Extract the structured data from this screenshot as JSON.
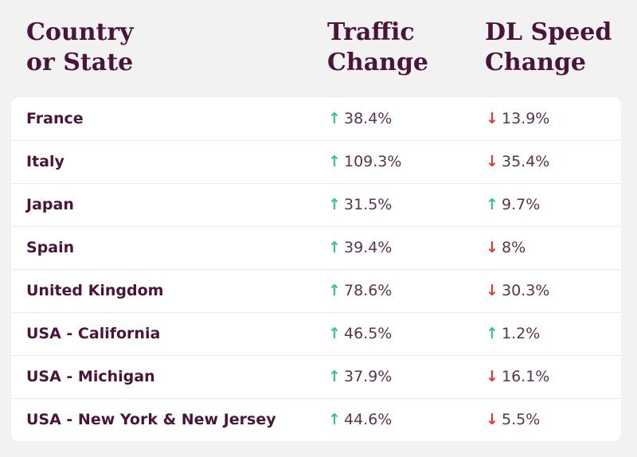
{
  "headers": {
    "country": "Country\nor State",
    "traffic": "Traffic\nChange",
    "speed": "DL Speed\nChange"
  },
  "colors": {
    "title": "#4a1538",
    "up": "#3dbf97",
    "down": "#e0393e"
  },
  "rows": [
    {
      "country": "France",
      "traffic": "38.4%",
      "traffic_dir": "up",
      "speed": "13.9%",
      "speed_dir": "down"
    },
    {
      "country": "Italy",
      "traffic": "109.3%",
      "traffic_dir": "up",
      "speed": "35.4%",
      "speed_dir": "down"
    },
    {
      "country": "Japan",
      "traffic": "31.5%",
      "traffic_dir": "up",
      "speed": "9.7%",
      "speed_dir": "up"
    },
    {
      "country": "Spain",
      "traffic": "39.4%",
      "traffic_dir": "up",
      "speed": "8%",
      "speed_dir": "down"
    },
    {
      "country": "United Kingdom",
      "traffic": "78.6%",
      "traffic_dir": "up",
      "speed": "30.3%",
      "speed_dir": "down"
    },
    {
      "country": "USA - California",
      "traffic": "46.5%",
      "traffic_dir": "up",
      "speed": "1.2%",
      "speed_dir": "up"
    },
    {
      "country": "USA - Michigan",
      "traffic": "37.9%",
      "traffic_dir": "up",
      "speed": "16.1%",
      "speed_dir": "down"
    },
    {
      "country": "USA - New York & New Jersey",
      "traffic": "44.6%",
      "traffic_dir": "up",
      "speed": "5.5%",
      "speed_dir": "down"
    }
  ]
}
